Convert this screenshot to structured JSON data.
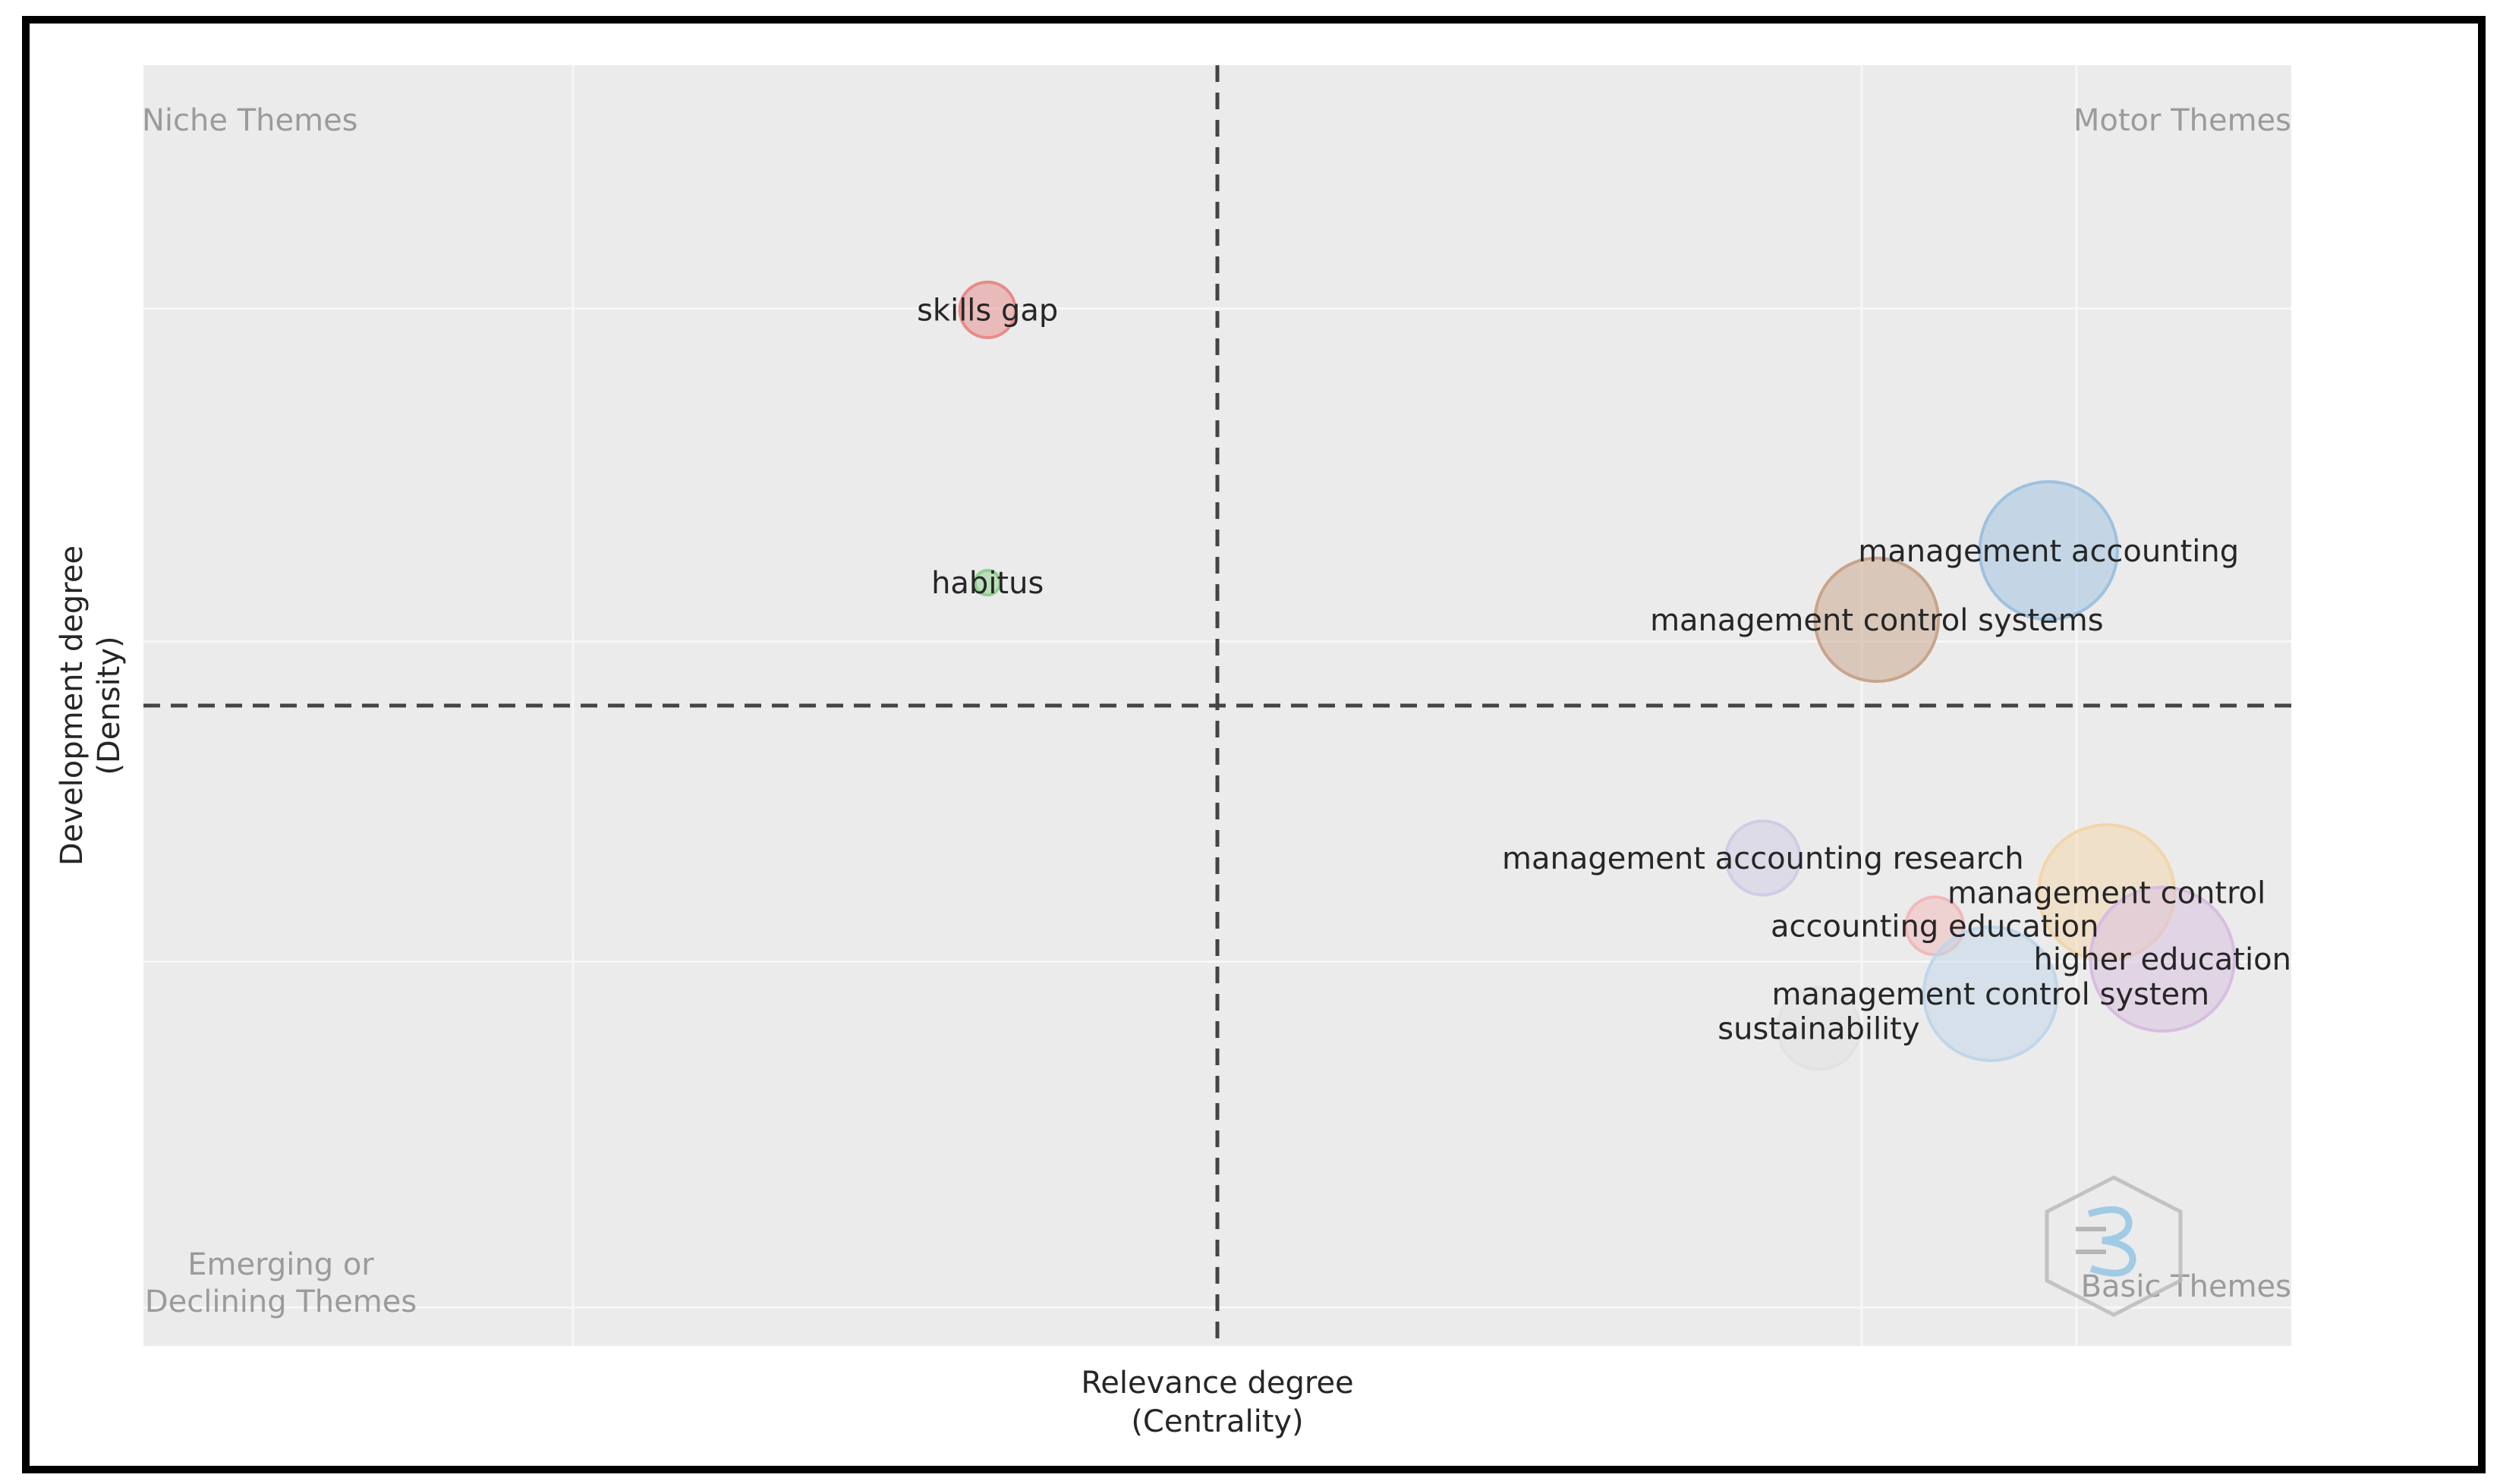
{
  "chart_data": {
    "type": "scatter",
    "subtype": "thematic-map-bubble",
    "xlabel": [
      "Relevance degree",
      "(Centrality)"
    ],
    "ylabel": [
      "Development degree",
      "(Density)"
    ],
    "xlim": [
      0.0,
      1.0
    ],
    "ylim": [
      0.0,
      1.0
    ],
    "grid": true,
    "x_divider": 0.5,
    "y_divider": 0.5,
    "quadrants": {
      "top_left": "Niche Themes",
      "top_right": "Motor Themes",
      "bottom_left": [
        "Emerging or",
        "Declining Themes"
      ],
      "bottom_right": "Basic Themes"
    },
    "clusters": [
      {
        "label": "skills gap",
        "x": 0.393,
        "y": 0.809,
        "size": 0.135,
        "color": "#e88a8a"
      },
      {
        "label": "habitus",
        "x": 0.393,
        "y": 0.596,
        "size": 0.06,
        "color": "#8fd08f"
      },
      {
        "label": "management accounting",
        "x": 0.887,
        "y": 0.621,
        "size": 0.335,
        "color": "#9ec1e0"
      },
      {
        "label": "management control systems",
        "x": 0.807,
        "y": 0.567,
        "size": 0.3,
        "color": "#c8a48a"
      },
      {
        "label": "management accounting research",
        "x": 0.754,
        "y": 0.381,
        "size": 0.18,
        "color": "#cfcce6"
      },
      {
        "label": "management control",
        "x": 0.914,
        "y": 0.354,
        "size": 0.33,
        "color": "#f3d5a9"
      },
      {
        "label": "accounting education",
        "x": 0.834,
        "y": 0.328,
        "size": 0.14,
        "color": "#f2b8b8"
      },
      {
        "label": "higher education",
        "x": 0.94,
        "y": 0.302,
        "size": 0.35,
        "color": "#d7bde0"
      },
      {
        "label": "management control system",
        "x": 0.86,
        "y": 0.275,
        "size": 0.325,
        "color": "#bfd6ea"
      },
      {
        "label": "sustainability",
        "x": 0.78,
        "y": 0.248,
        "size": 0.2,
        "color": "#e2e2e2"
      }
    ]
  }
}
